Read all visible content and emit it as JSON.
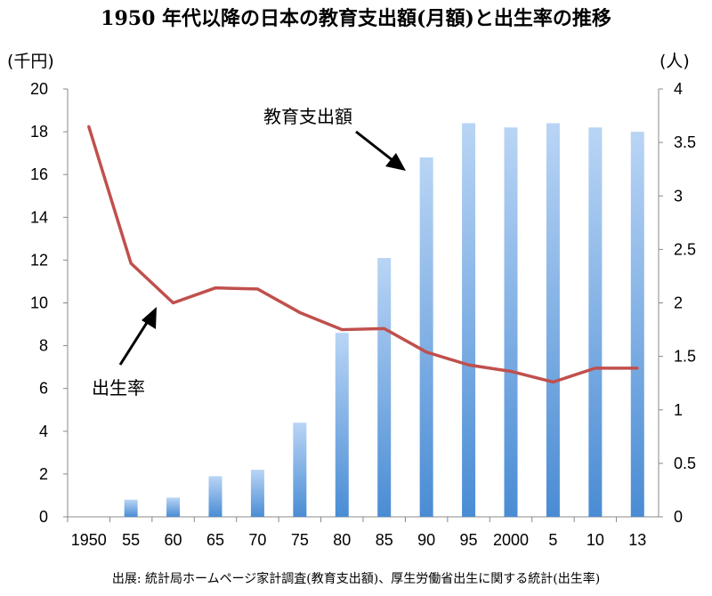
{
  "chart_data": {
    "type": "bar+line",
    "title": "1950 年代以降の日本の教育支出額(月額)と出生率の推移",
    "left_axis_unit": "(千円)",
    "right_axis_unit": "(人)",
    "categories": [
      "1950",
      "55",
      "60",
      "65",
      "70",
      "75",
      "80",
      "85",
      "90",
      "95",
      "2000",
      "5",
      "10",
      "13"
    ],
    "left_axis": {
      "min": 0,
      "max": 20,
      "ticks": [
        "0",
        "2",
        "4",
        "6",
        "8",
        "10",
        "12",
        "14",
        "16",
        "18",
        "20"
      ]
    },
    "right_axis": {
      "min": 0,
      "max": 4,
      "ticks": [
        "0",
        "0.5",
        "1",
        "1.5",
        "2",
        "2.5",
        "3",
        "3.5",
        "4"
      ]
    },
    "series": [
      {
        "name": "教育支出額",
        "type": "bar",
        "axis": "left",
        "values": [
          0,
          0.8,
          0.9,
          1.9,
          2.2,
          4.4,
          8.6,
          12.1,
          16.8,
          18.4,
          18.2,
          18.4,
          18.2,
          18.0
        ]
      },
      {
        "name": "出生率",
        "type": "line",
        "axis": "right",
        "color": "#c0504d",
        "values": [
          3.65,
          2.37,
          2.0,
          2.14,
          2.13,
          1.91,
          1.75,
          1.76,
          1.54,
          1.42,
          1.36,
          1.26,
          1.39,
          1.39
        ]
      }
    ],
    "annotations": [
      {
        "text": "教育支出額",
        "target": "教育支出額"
      },
      {
        "text": "出生率",
        "target": "出生率"
      }
    ],
    "source": "出展: 統計局ホームページ家計調査(教育支出額)、厚生労働省出生に関する統計(出生率)"
  },
  "colors": {
    "bar_top": "#b7d3f4",
    "bar_bottom": "#4d8fd6",
    "line": "#c0504d",
    "axis": "#888888"
  }
}
